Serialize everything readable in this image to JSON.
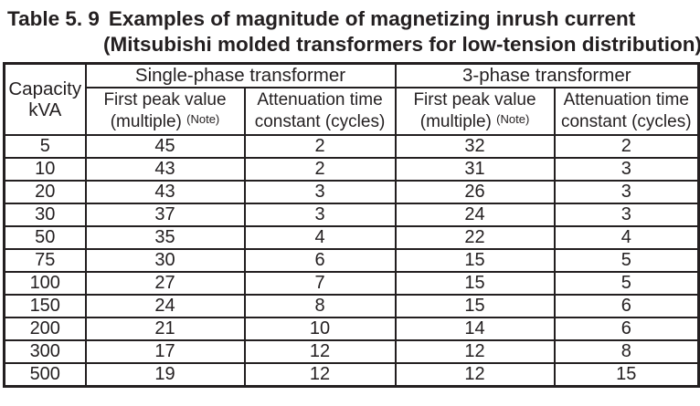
{
  "title": {
    "label": "Table 5. 9",
    "text": "Examples of magnitude of magnetizing inrush current",
    "subtitle": "(Mitsubishi molded transformers for low-tension distribution)"
  },
  "table": {
    "capacity_header": {
      "line1": "Capacity",
      "line2": "kVA"
    },
    "group_headers": {
      "single_phase": "Single-phase transformer",
      "three_phase": "3-phase transformer"
    },
    "sub_headers": {
      "first_peak_line1": "First peak value",
      "first_peak_line2": "(multiple)",
      "note": "(Note)",
      "attenuation_line1": "Attenuation time",
      "attenuation_line2": "constant (cycles)"
    },
    "rows": [
      {
        "capacity": "5",
        "single_phase_peak": "45",
        "single_phase_attenuation": "2",
        "three_phase_peak": "32",
        "three_phase_attenuation": "2"
      },
      {
        "capacity": "10",
        "single_phase_peak": "43",
        "single_phase_attenuation": "2",
        "three_phase_peak": "31",
        "three_phase_attenuation": "3"
      },
      {
        "capacity": "20",
        "single_phase_peak": "43",
        "single_phase_attenuation": "3",
        "three_phase_peak": "26",
        "three_phase_attenuation": "3"
      },
      {
        "capacity": "30",
        "single_phase_peak": "37",
        "single_phase_attenuation": "3",
        "three_phase_peak": "24",
        "three_phase_attenuation": "3"
      },
      {
        "capacity": "50",
        "single_phase_peak": "35",
        "single_phase_attenuation": "4",
        "three_phase_peak": "22",
        "three_phase_attenuation": "4"
      },
      {
        "capacity": "75",
        "single_phase_peak": "30",
        "single_phase_attenuation": "6",
        "three_phase_peak": "15",
        "three_phase_attenuation": "5"
      },
      {
        "capacity": "100",
        "single_phase_peak": "27",
        "single_phase_attenuation": "7",
        "three_phase_peak": "15",
        "three_phase_attenuation": "5"
      },
      {
        "capacity": "150",
        "single_phase_peak": "24",
        "single_phase_attenuation": "8",
        "three_phase_peak": "15",
        "three_phase_attenuation": "6"
      },
      {
        "capacity": "200",
        "single_phase_peak": "21",
        "single_phase_attenuation": "10",
        "three_phase_peak": "14",
        "three_phase_attenuation": "6"
      },
      {
        "capacity": "300",
        "single_phase_peak": "17",
        "single_phase_attenuation": "12",
        "three_phase_peak": "12",
        "three_phase_attenuation": "8"
      },
      {
        "capacity": "500",
        "single_phase_peak": "19",
        "single_phase_attenuation": "12",
        "three_phase_peak": "12",
        "three_phase_attenuation": "15"
      }
    ]
  },
  "colors": {
    "text": "#231f20",
    "border": "#231f20",
    "background": "#ffffff"
  }
}
